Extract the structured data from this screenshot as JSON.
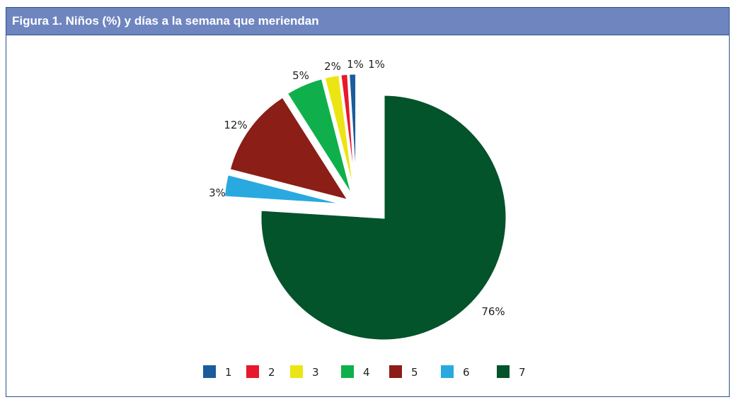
{
  "chart_data": {
    "type": "pie",
    "title": "Figura 1.  Niños (%) y días a la semana que meriendan",
    "slices": [
      {
        "label": "7",
        "value": 76,
        "data_label": "76%",
        "color": "#03532b",
        "exploded": false
      },
      {
        "label": "6",
        "value": 3,
        "data_label": "3%",
        "color": "#29a9e0",
        "exploded": true
      },
      {
        "label": "5",
        "value": 12,
        "data_label": "12%",
        "color": "#8b1e17",
        "exploded": true
      },
      {
        "label": "4",
        "value": 5,
        "data_label": "5%",
        "color": "#0fb04b",
        "exploded": true
      },
      {
        "label": "3",
        "value": 2,
        "data_label": "2%",
        "color": "#ece514",
        "exploded": true
      },
      {
        "label": "2",
        "value": 1,
        "data_label": "1%",
        "color": "#e8192d",
        "exploded": true
      },
      {
        "label": "1",
        "value": 1,
        "data_label": "1%",
        "color": "#1a5c9c",
        "exploded": true
      }
    ],
    "legend": [
      "1",
      "2",
      "3",
      "4",
      "5",
      "6",
      "7"
    ],
    "legend_placement": "bottom"
  }
}
